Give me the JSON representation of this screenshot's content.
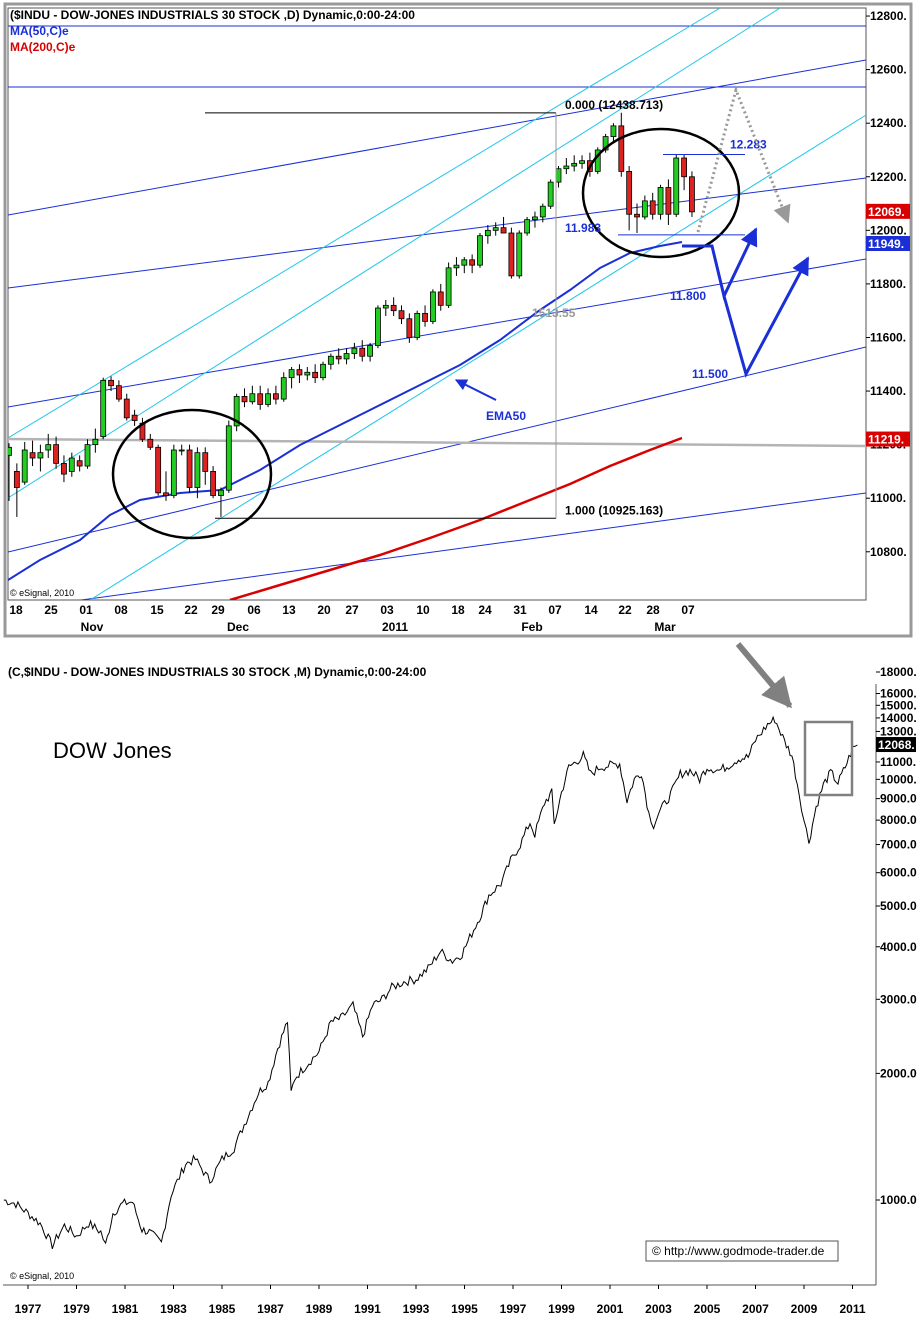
{
  "chart_data": [
    {
      "type": "candlestick",
      "title": "($INDU - DOW-JONES INDUSTRIALS 30 STOCK ,D) Dynamic,0:00-24:00",
      "legend": [
        {
          "name": "MA(50,C)e",
          "color": "#1a2fd6"
        },
        {
          "name": "MA(200,C)e",
          "color": "#d80000"
        }
      ],
      "ylim": [
        10620,
        12830
      ],
      "y_ticks": [
        "12800.",
        "12600.",
        "12400.",
        "12200.",
        "12000.",
        "11800.",
        "11600.",
        "11400.",
        "11200.",
        "11000.",
        "10800."
      ],
      "x_day_labels": [
        "18",
        "25",
        "01",
        "08",
        "15",
        "22",
        "29",
        "06",
        "13",
        "20",
        "27",
        "03",
        "10",
        "18",
        "24",
        "31",
        "07",
        "14",
        "22",
        "28",
        "07"
      ],
      "x_month_labels": [
        "Nov",
        "Dec",
        "2011",
        "Feb",
        "Mar"
      ],
      "price_badges": [
        {
          "text": "12069.",
          "value": 12069,
          "color": "#d80000"
        },
        {
          "text": "11949.",
          "value": 11949,
          "color": "#1a2fd6"
        },
        {
          "text": "11219.",
          "value": 11219,
          "color": "#d80000"
        }
      ],
      "fib_levels": [
        {
          "label": "0.000 (12438.713)",
          "value": 12438.713
        },
        {
          "label": "1.000 (10925.163)",
          "value": 10925.163
        }
      ],
      "range_label": "1513.55",
      "annotations": [
        {
          "text": "12.283",
          "value": 12283
        },
        {
          "text": "11.983",
          "value": 11983
        },
        {
          "text": "11.800",
          "value": 11800
        },
        {
          "text": "11.500",
          "value": 11500
        },
        {
          "text": "EMA50"
        }
      ],
      "candles": [
        {
          "o": 11160,
          "h": 11205,
          "l": 10990,
          "c": 11190
        },
        {
          "o": 11100,
          "h": 11130,
          "l": 10930,
          "c": 11040
        },
        {
          "o": 11060,
          "h": 11210,
          "l": 11050,
          "c": 11180
        },
        {
          "o": 11170,
          "h": 11215,
          "l": 11120,
          "c": 11150
        },
        {
          "o": 11150,
          "h": 11200,
          "l": 11100,
          "c": 11170
        },
        {
          "o": 11180,
          "h": 11240,
          "l": 11150,
          "c": 11200
        },
        {
          "o": 11200,
          "h": 11230,
          "l": 11110,
          "c": 11130
        },
        {
          "o": 11130,
          "h": 11160,
          "l": 11060,
          "c": 11090
        },
        {
          "o": 11100,
          "h": 11170,
          "l": 11080,
          "c": 11150
        },
        {
          "o": 11140,
          "h": 11160,
          "l": 11100,
          "c": 11120
        },
        {
          "o": 11120,
          "h": 11220,
          "l": 11110,
          "c": 11200
        },
        {
          "o": 11200,
          "h": 11260,
          "l": 11170,
          "c": 11220
        },
        {
          "o": 11230,
          "h": 11450,
          "l": 11220,
          "c": 11440
        },
        {
          "o": 11440,
          "h": 11455,
          "l": 11400,
          "c": 11420
        },
        {
          "o": 11420,
          "h": 11440,
          "l": 11360,
          "c": 11370
        },
        {
          "o": 11370,
          "h": 11390,
          "l": 11290,
          "c": 11300
        },
        {
          "o": 11310,
          "h": 11330,
          "l": 11270,
          "c": 11290
        },
        {
          "o": 11280,
          "h": 11300,
          "l": 11210,
          "c": 11220
        },
        {
          "o": 11220,
          "h": 11240,
          "l": 11180,
          "c": 11190
        },
        {
          "o": 11190,
          "h": 11200,
          "l": 11010,
          "c": 11020
        },
        {
          "o": 11020,
          "h": 11100,
          "l": 10990,
          "c": 11010
        },
        {
          "o": 11010,
          "h": 11200,
          "l": 11000,
          "c": 11180
        },
        {
          "o": 11180,
          "h": 11200,
          "l": 11160,
          "c": 11180
        },
        {
          "o": 11180,
          "h": 11200,
          "l": 11020,
          "c": 11040
        },
        {
          "o": 11040,
          "h": 11190,
          "l": 11000,
          "c": 11170
        },
        {
          "o": 11170,
          "h": 11190,
          "l": 11050,
          "c": 11100
        },
        {
          "o": 11100,
          "h": 11120,
          "l": 11000,
          "c": 11010
        },
        {
          "o": 11010,
          "h": 11040,
          "l": 10930,
          "c": 11030
        },
        {
          "o": 11030,
          "h": 11290,
          "l": 11020,
          "c": 11270
        },
        {
          "o": 11270,
          "h": 11390,
          "l": 11250,
          "c": 11380
        },
        {
          "o": 11380,
          "h": 11410,
          "l": 11340,
          "c": 11360
        },
        {
          "o": 11360,
          "h": 11420,
          "l": 11350,
          "c": 11390
        },
        {
          "o": 11390,
          "h": 11420,
          "l": 11330,
          "c": 11350
        },
        {
          "o": 11350,
          "h": 11410,
          "l": 11340,
          "c": 11390
        },
        {
          "o": 11390,
          "h": 11420,
          "l": 11350,
          "c": 11370
        },
        {
          "o": 11370,
          "h": 11470,
          "l": 11360,
          "c": 11450
        },
        {
          "o": 11450,
          "h": 11490,
          "l": 11410,
          "c": 11480
        },
        {
          "o": 11480,
          "h": 11500,
          "l": 11430,
          "c": 11460
        },
        {
          "o": 11460,
          "h": 11490,
          "l": 11440,
          "c": 11470
        },
        {
          "o": 11470,
          "h": 11500,
          "l": 11430,
          "c": 11450
        },
        {
          "o": 11450,
          "h": 11510,
          "l": 11440,
          "c": 11500
        },
        {
          "o": 11500,
          "h": 11540,
          "l": 11480,
          "c": 11530
        },
        {
          "o": 11530,
          "h": 11560,
          "l": 11500,
          "c": 11520
        },
        {
          "o": 11520,
          "h": 11560,
          "l": 11500,
          "c": 11540
        },
        {
          "o": 11540,
          "h": 11580,
          "l": 11520,
          "c": 11560
        },
        {
          "o": 11560,
          "h": 11590,
          "l": 11510,
          "c": 11530
        },
        {
          "o": 11530,
          "h": 11580,
          "l": 11510,
          "c": 11570
        },
        {
          "o": 11570,
          "h": 11720,
          "l": 11560,
          "c": 11710
        },
        {
          "o": 11710,
          "h": 11740,
          "l": 11680,
          "c": 11720
        },
        {
          "o": 11720,
          "h": 11750,
          "l": 11680,
          "c": 11700
        },
        {
          "o": 11700,
          "h": 11720,
          "l": 11650,
          "c": 11670
        },
        {
          "o": 11670,
          "h": 11690,
          "l": 11580,
          "c": 11600
        },
        {
          "o": 11600,
          "h": 11700,
          "l": 11590,
          "c": 11690
        },
        {
          "o": 11690,
          "h": 11720,
          "l": 11640,
          "c": 11660
        },
        {
          "o": 11660,
          "h": 11780,
          "l": 11650,
          "c": 11770
        },
        {
          "o": 11770,
          "h": 11800,
          "l": 11700,
          "c": 11720
        },
        {
          "o": 11720,
          "h": 11880,
          "l": 11710,
          "c": 11860
        },
        {
          "o": 11860,
          "h": 11900,
          "l": 11830,
          "c": 11870
        },
        {
          "o": 11870,
          "h": 11900,
          "l": 11840,
          "c": 11890
        },
        {
          "o": 11890,
          "h": 11910,
          "l": 11840,
          "c": 11870
        },
        {
          "o": 11870,
          "h": 11990,
          "l": 11860,
          "c": 11980
        },
        {
          "o": 11980,
          "h": 12020,
          "l": 11950,
          "c": 12000
        },
        {
          "o": 12000,
          "h": 12030,
          "l": 11980,
          "c": 12010
        },
        {
          "o": 12010,
          "h": 12050,
          "l": 11990,
          "c": 11990
        },
        {
          "o": 11990,
          "h": 12010,
          "l": 11820,
          "c": 11830
        },
        {
          "o": 11830,
          "h": 12000,
          "l": 11820,
          "c": 11990
        },
        {
          "o": 11990,
          "h": 12050,
          "l": 11980,
          "c": 12040
        },
        {
          "o": 12040,
          "h": 12070,
          "l": 12010,
          "c": 12050
        },
        {
          "o": 12050,
          "h": 12100,
          "l": 12030,
          "c": 12090
        },
        {
          "o": 12090,
          "h": 12190,
          "l": 12080,
          "c": 12180
        },
        {
          "o": 12180,
          "h": 12240,
          "l": 12160,
          "c": 12230
        },
        {
          "o": 12230,
          "h": 12270,
          "l": 12210,
          "c": 12240
        },
        {
          "o": 12240,
          "h": 12280,
          "l": 12220,
          "c": 12250
        },
        {
          "o": 12250,
          "h": 12280,
          "l": 12230,
          "c": 12260
        },
        {
          "o": 12260,
          "h": 12290,
          "l": 12200,
          "c": 12220
        },
        {
          "o": 12220,
          "h": 12310,
          "l": 12210,
          "c": 12300
        },
        {
          "o": 12300,
          "h": 12360,
          "l": 12290,
          "c": 12350
        },
        {
          "o": 12350,
          "h": 12400,
          "l": 12330,
          "c": 12390
        },
        {
          "o": 12390,
          "h": 12439,
          "l": 12200,
          "c": 12220
        },
        {
          "o": 12220,
          "h": 12240,
          "l": 12000,
          "c": 12060
        },
        {
          "o": 12060,
          "h": 12100,
          "l": 11990,
          "c": 12050
        },
        {
          "o": 12050,
          "h": 12130,
          "l": 12040,
          "c": 12110
        },
        {
          "o": 12110,
          "h": 12140,
          "l": 12040,
          "c": 12060
        },
        {
          "o": 12060,
          "h": 12170,
          "l": 12040,
          "c": 12160
        },
        {
          "o": 12160,
          "h": 12190,
          "l": 12020,
          "c": 12060
        },
        {
          "o": 12060,
          "h": 12283,
          "l": 12050,
          "c": 12270
        },
        {
          "o": 12270,
          "h": 12283,
          "l": 12150,
          "c": 12200
        },
        {
          "o": 12200,
          "h": 12220,
          "l": 12050,
          "c": 12069
        }
      ]
    },
    {
      "type": "line",
      "title": "(C,$INDU - DOW-JONES INDUSTRIALS 30 STOCK ,M) Dynamic,0:00-24:00",
      "text_label": "DOW Jones",
      "yscale": "log",
      "ylim": [
        720,
        18500
      ],
      "y_ticks": [
        "18000.",
        "16000.",
        "15000.",
        "14000.",
        "13000.",
        "12000.",
        "11000.",
        "10000.",
        "9000.0",
        "8000.0",
        "7000.0",
        "6000.0",
        "5000.0",
        "4000.0",
        "3000.0",
        "2000.0",
        "1000.0"
      ],
      "price_badge": {
        "text": "12068.",
        "value": 12068
      },
      "x_labels": [
        "1977",
        "1979",
        "1981",
        "1983",
        "1985",
        "1987",
        "1989",
        "1991",
        "1993",
        "1995",
        "1997",
        "1999",
        "2001",
        "2003",
        "2005",
        "2007",
        "2009",
        "2011"
      ],
      "copyright": "© http://www.godmode-trader.de",
      "points": [
        [
          1976.0,
          1000
        ],
        [
          1976.5,
          980
        ],
        [
          1977.0,
          930
        ],
        [
          1977.5,
          880
        ],
        [
          1978.0,
          780
        ],
        [
          1978.5,
          870
        ],
        [
          1979.0,
          820
        ],
        [
          1979.5,
          880
        ],
        [
          1980.0,
          840
        ],
        [
          1980.2,
          780
        ],
        [
          1980.5,
          930
        ],
        [
          1980.9,
          980
        ],
        [
          1981.3,
          990
        ],
        [
          1981.7,
          850
        ],
        [
          1982.0,
          840
        ],
        [
          1982.5,
          790
        ],
        [
          1982.9,
          1030
        ],
        [
          1983.5,
          1220
        ],
        [
          1983.9,
          1250
        ],
        [
          1984.5,
          1110
        ],
        [
          1985.0,
          1250
        ],
        [
          1985.5,
          1330
        ],
        [
          1986.0,
          1550
        ],
        [
          1986.5,
          1800
        ],
        [
          1986.9,
          1900
        ],
        [
          1987.3,
          2300
        ],
        [
          1987.7,
          2660
        ],
        [
          1987.85,
          1800
        ],
        [
          1988.0,
          1950
        ],
        [
          1988.5,
          2100
        ],
        [
          1989.0,
          2250
        ],
        [
          1989.5,
          2650
        ],
        [
          1989.9,
          2700
        ],
        [
          1990.4,
          2900
        ],
        [
          1990.8,
          2450
        ],
        [
          1991.2,
          2900
        ],
        [
          1991.6,
          3000
        ],
        [
          1992.0,
          3200
        ],
        [
          1992.5,
          3300
        ],
        [
          1993.0,
          3350
        ],
        [
          1993.5,
          3550
        ],
        [
          1994.0,
          3900
        ],
        [
          1994.5,
          3700
        ],
        [
          1994.9,
          3850
        ],
        [
          1995.3,
          4300
        ],
        [
          1995.7,
          4800
        ],
        [
          1996.0,
          5300
        ],
        [
          1996.5,
          5650
        ],
        [
          1996.9,
          6400
        ],
        [
          1997.3,
          7000
        ],
        [
          1997.7,
          7900
        ],
        [
          1997.9,
          7400
        ],
        [
          1998.3,
          8800
        ],
        [
          1998.6,
          9300
        ],
        [
          1998.7,
          7800
        ],
        [
          1999.0,
          9300
        ],
        [
          1999.3,
          10700
        ],
        [
          1999.6,
          11000
        ],
        [
          1999.9,
          11400
        ],
        [
          2000.2,
          10300
        ],
        [
          2000.6,
          10700
        ],
        [
          2001.0,
          10800
        ],
        [
          2001.4,
          10900
        ],
        [
          2001.7,
          8900
        ],
        [
          2002.0,
          10000
        ],
        [
          2002.3,
          10400
        ],
        [
          2002.6,
          8300
        ],
        [
          2002.8,
          7800
        ],
        [
          2003.0,
          8300
        ],
        [
          2003.5,
          9200
        ],
        [
          2003.9,
          10300
        ],
        [
          2004.3,
          10500
        ],
        [
          2004.7,
          10000
        ],
        [
          2005.0,
          10700
        ],
        [
          2005.5,
          10500
        ],
        [
          2005.9,
          10800
        ],
        [
          2006.3,
          11200
        ],
        [
          2006.7,
          11300
        ],
        [
          2007.0,
          12400
        ],
        [
          2007.5,
          13500
        ],
        [
          2007.8,
          13900
        ],
        [
          2008.2,
          12300
        ],
        [
          2008.5,
          11400
        ],
        [
          2008.8,
          9300
        ],
        [
          2009.0,
          8000
        ],
        [
          2009.2,
          7100
        ],
        [
          2009.5,
          8600
        ],
        [
          2009.8,
          9700
        ],
        [
          2010.1,
          10400
        ],
        [
          2010.4,
          9800
        ],
        [
          2010.7,
          10700
        ],
        [
          2011.0,
          11800
        ],
        [
          2011.2,
          12068
        ]
      ]
    }
  ]
}
